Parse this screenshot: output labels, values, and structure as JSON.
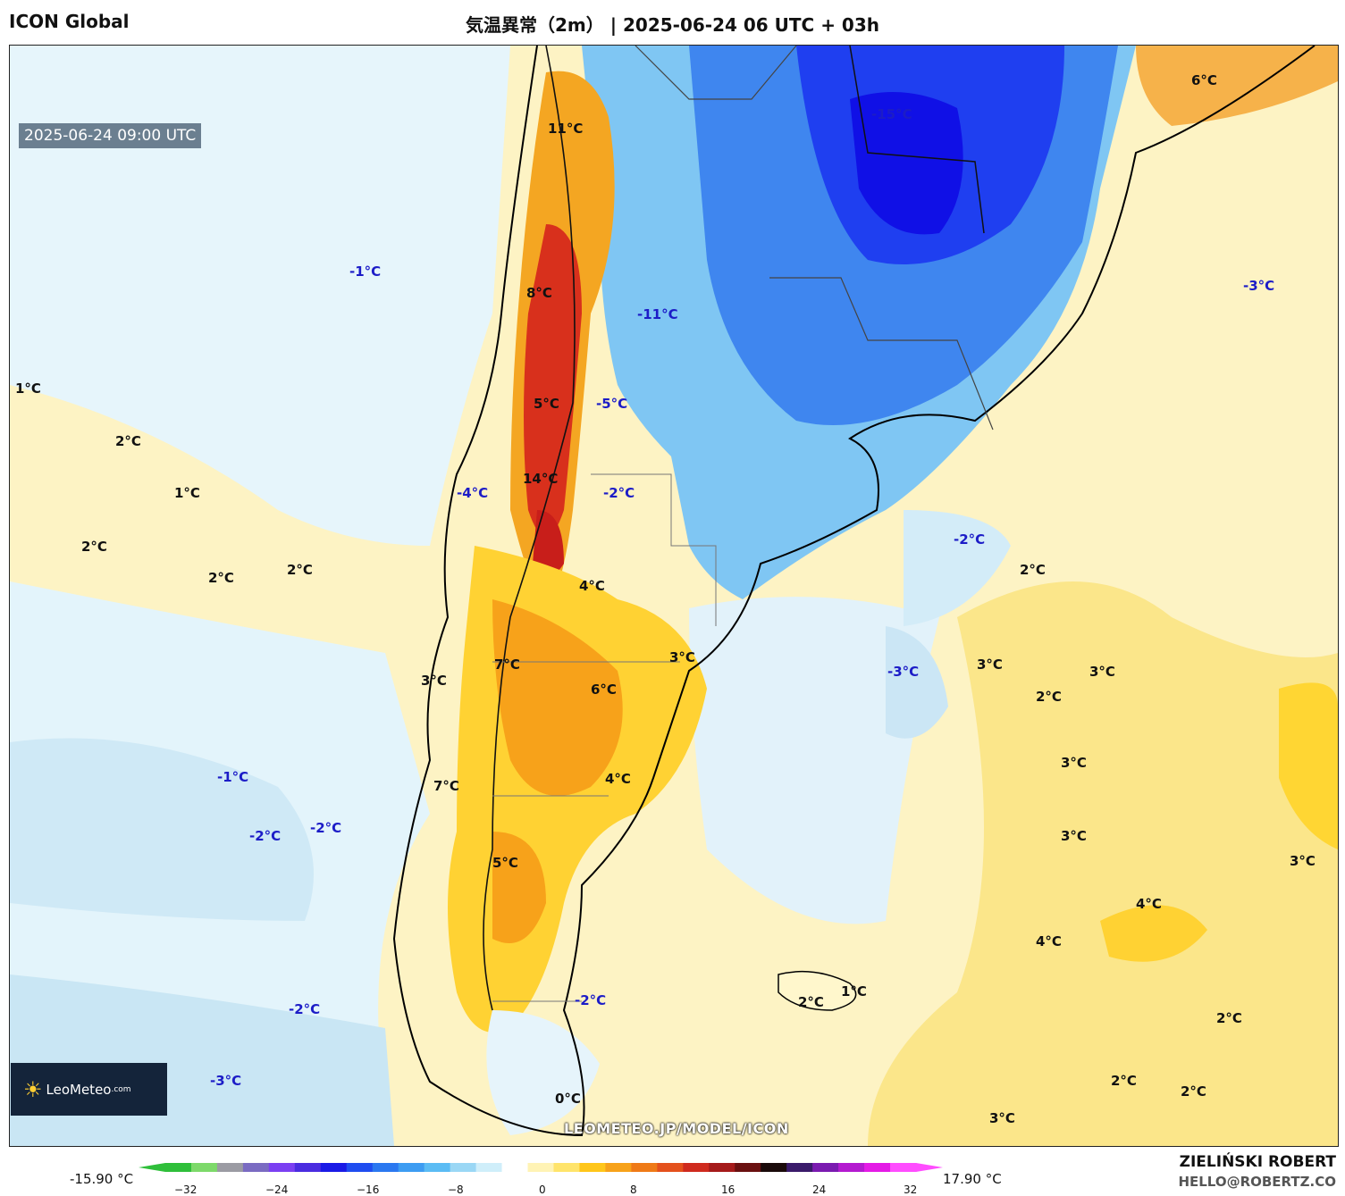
{
  "header": {
    "model": "ICON Global",
    "title": "気温異常（2m） | 2025-06-24 06 UTC + 03h"
  },
  "valid_time": "2025-06-24 09:00 UTC",
  "watermark": "LEOMETEO.JP/MODEL/ICON",
  "logo": {
    "name": "LeoMeteo",
    "suffix": ".com",
    "icon": "sun-icon"
  },
  "footer": {
    "author": "ZIELIŃSKI ROBERT",
    "contact": "HELLO@ROBERTZ.CO"
  },
  "colorbar": {
    "min_label": "-15.90 °C",
    "max_label": "17.90 °C",
    "ticks": [
      "−32",
      "−24",
      "−16",
      "−8",
      "0",
      "8",
      "16",
      "24",
      "32"
    ],
    "colors": [
      "#2fbf3a",
      "#7dd96a",
      "#9b9ba3",
      "#7a6bc2",
      "#7b3ff2",
      "#4a2ce0",
      "#1a1ae6",
      "#1f4df0",
      "#2b78f0",
      "#3d9cf2",
      "#5bbcf4",
      "#9ad7f5",
      "#cfeefa",
      "#ffffff",
      "#fff3b5",
      "#ffe46b",
      "#ffc61a",
      "#f7a21a",
      "#ef7a17",
      "#e4511c",
      "#cf2a1e",
      "#a51a1a",
      "#6a1010",
      "#1a0a0a",
      "#3a1a6a",
      "#7a1ab0",
      "#b41ad0",
      "#e41ae6",
      "#ff4dff"
    ]
  },
  "labels": [
    {
      "text": "11°C",
      "sign": "pos"
    },
    {
      "text": "8°C",
      "sign": "pos"
    },
    {
      "text": "5°C",
      "sign": "pos"
    },
    {
      "text": "14°C",
      "sign": "pos"
    },
    {
      "text": "-11°C",
      "sign": "neg"
    },
    {
      "text": "-5°C",
      "sign": "neg"
    },
    {
      "text": "-15°C",
      "sign": "neg"
    },
    {
      "text": "-3°C",
      "sign": "neg"
    },
    {
      "text": "-1°C",
      "sign": "neg"
    },
    {
      "text": "1°C",
      "sign": "pos"
    },
    {
      "text": "2°C",
      "sign": "pos"
    },
    {
      "text": "1°C",
      "sign": "pos"
    },
    {
      "text": "2°C",
      "sign": "pos"
    },
    {
      "text": "2°C",
      "sign": "pos"
    },
    {
      "text": "2°C",
      "sign": "pos"
    },
    {
      "text": "-4°C",
      "sign": "neg"
    },
    {
      "text": "-2°C",
      "sign": "neg"
    },
    {
      "text": "4°C",
      "sign": "pos"
    },
    {
      "text": "-2°C",
      "sign": "neg"
    },
    {
      "text": "2°C",
      "sign": "pos"
    },
    {
      "text": "6°C",
      "sign": "pos"
    },
    {
      "text": "7°C",
      "sign": "pos"
    },
    {
      "text": "3°C",
      "sign": "pos"
    },
    {
      "text": "6°C",
      "sign": "pos"
    },
    {
      "text": "3°C",
      "sign": "pos"
    },
    {
      "text": "-3°C",
      "sign": "neg"
    },
    {
      "text": "3°C",
      "sign": "pos"
    },
    {
      "text": "3°C",
      "sign": "pos"
    },
    {
      "text": "2°C",
      "sign": "pos"
    },
    {
      "text": "-1°C",
      "sign": "neg"
    },
    {
      "text": "7°C",
      "sign": "pos"
    },
    {
      "text": "4°C",
      "sign": "pos"
    },
    {
      "text": "3°C",
      "sign": "pos"
    },
    {
      "text": "-2°C",
      "sign": "neg"
    },
    {
      "text": "-2°C",
      "sign": "neg"
    },
    {
      "text": "5°C",
      "sign": "pos"
    },
    {
      "text": "3°C",
      "sign": "pos"
    },
    {
      "text": "3°C",
      "sign": "pos"
    },
    {
      "text": "4°C",
      "sign": "pos"
    },
    {
      "text": "4°C",
      "sign": "pos"
    },
    {
      "text": "2°C",
      "sign": "pos"
    },
    {
      "text": "1°C",
      "sign": "pos"
    },
    {
      "text": "-2°C",
      "sign": "neg"
    },
    {
      "text": "-2°C",
      "sign": "neg"
    },
    {
      "text": "2°C",
      "sign": "pos"
    },
    {
      "text": "-3°C",
      "sign": "neg"
    },
    {
      "text": "0°C",
      "sign": "pos"
    },
    {
      "text": "2°C",
      "sign": "pos"
    },
    {
      "text": "2°C",
      "sign": "pos"
    },
    {
      "text": "3°C",
      "sign": "pos"
    }
  ]
}
